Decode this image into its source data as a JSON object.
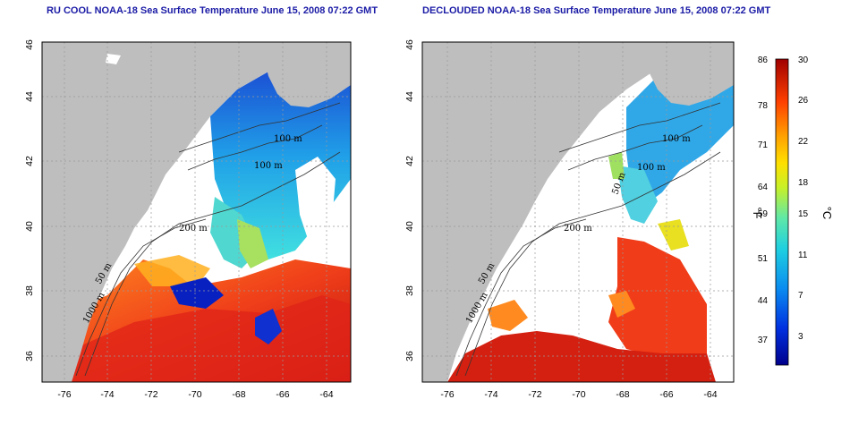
{
  "titles": {
    "left": "RU COOL NOAA-18 Sea Surface Temperature June 15, 2008 07:22 GMT",
    "right": "DECLOUDED NOAA-18 Sea Surface Temperature June 15, 2008 07:22 GMT"
  },
  "axes": {
    "lon_ticks": [
      "-76",
      "-74",
      "-72",
      "-70",
      "-68",
      "-66",
      "-64"
    ],
    "lat_ticks": [
      "36",
      "38",
      "40",
      "42",
      "44",
      "46"
    ]
  },
  "contour_labels": {
    "left": [
      "100 m",
      "100 m",
      "200 m",
      "50 m",
      "1000 m"
    ],
    "right": [
      "100 m",
      "100 m",
      "50 m",
      "200 m",
      "50 m",
      "1000 m"
    ]
  },
  "colorbar": {
    "fahrenheit_ticks": [
      "86",
      "78",
      "71",
      "64",
      "59",
      "51",
      "44",
      "37"
    ],
    "celsius_ticks": [
      "30",
      "26",
      "22",
      "18",
      "15",
      "11",
      "7",
      "3"
    ],
    "fahrenheit_unit": "°F",
    "celsius_unit": "°C"
  },
  "colors": {
    "land": "#bebebe",
    "cloud": "#ffffff",
    "title": "#1a1aa6",
    "warm": "#e8301e",
    "cool": "#1e6ed8"
  }
}
